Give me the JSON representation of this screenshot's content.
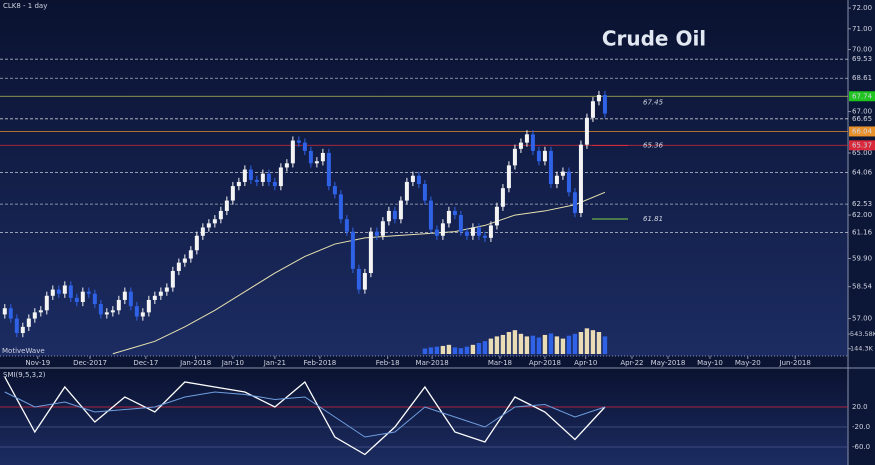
{
  "chart_data": {
    "type": "candlestick",
    "title": "Crude Oil",
    "symbol_label": "CLK8 - 1 day",
    "watermark": "MotiveWave",
    "up_color": "#f4f4f4",
    "down_color": "#2f62e6",
    "categories": [
      null,
      null,
      null,
      null,
      null,
      null,
      null,
      null,
      null,
      null,
      null,
      null,
      null,
      null,
      null,
      null,
      null,
      null,
      null,
      null,
      null,
      null,
      null,
      null,
      null,
      null,
      null,
      null,
      null,
      null,
      null,
      null,
      null,
      null,
      null,
      null,
      null,
      null,
      null,
      null,
      null,
      null,
      null,
      null,
      null,
      null,
      null,
      null,
      null,
      null,
      null,
      null,
      null,
      null,
      null,
      null,
      null,
      null,
      null,
      null,
      null,
      null,
      null,
      null,
      null,
      null,
      null,
      null,
      null,
      null,
      null,
      null,
      null,
      null,
      null,
      null,
      null,
      null,
      null,
      null,
      null,
      null,
      null,
      null,
      null,
      null,
      null,
      null,
      null,
      null,
      null,
      null,
      null,
      null,
      null,
      null,
      null,
      null,
      null,
      null,
      null
    ],
    "open": [
      57.2,
      57.5,
      57.0,
      56.3,
      56.6,
      57.0,
      57.3,
      57.4,
      58.1,
      58.4,
      58.2,
      58.6,
      58.0,
      57.8,
      58.3,
      58.2,
      57.7,
      57.2,
      57.3,
      57.4,
      57.9,
      58.3,
      57.6,
      57.1,
      57.3,
      57.9,
      58.1,
      58.3,
      58.5,
      59.3,
      59.7,
      59.9,
      60.3,
      61.0,
      61.4,
      61.6,
      61.8,
      62.2,
      62.7,
      63.4,
      63.6,
      64.2,
      63.7,
      63.6,
      64.0,
      63.6,
      63.4,
      64.3,
      64.5,
      65.6,
      65.5,
      65.1,
      64.5,
      64.6,
      65.0,
      63.4,
      63.0,
      61.8,
      61.2,
      59.4,
      58.4,
      59.2,
      61.2,
      61.0,
      61.7,
      62.2,
      61.8,
      62.7,
      63.6,
      63.9,
      63.5,
      62.7,
      61.3,
      61.0,
      61.6,
      62.2,
      62.0,
      61.2,
      61.0,
      61.4,
      61.0,
      60.9,
      61.5,
      62.4,
      63.3,
      64.4,
      65.2,
      65.5,
      65.9,
      65.1,
      64.6,
      65.1,
      63.5,
      63.9,
      64.1,
      63.1,
      62.1,
      65.4,
      66.7,
      67.5,
      67.8
    ],
    "high": [
      57.7,
      57.7,
      57.2,
      56.8,
      57.2,
      57.5,
      57.6,
      58.3,
      58.6,
      58.6,
      58.8,
      58.8,
      58.2,
      58.5,
      58.5,
      58.4,
      57.9,
      57.5,
      57.6,
      58.1,
      58.5,
      58.5,
      57.8,
      57.5,
      58.1,
      58.3,
      58.5,
      58.7,
      59.5,
      59.9,
      60.1,
      60.5,
      61.2,
      61.6,
      61.8,
      62.0,
      62.4,
      62.9,
      63.6,
      63.8,
      64.4,
      64.4,
      63.9,
      64.2,
      64.2,
      63.8,
      64.5,
      64.7,
      65.8,
      65.8,
      65.7,
      65.3,
      64.8,
      65.2,
      65.2,
      63.6,
      63.2,
      62.0,
      61.4,
      59.6,
      59.4,
      61.4,
      61.4,
      61.9,
      62.4,
      62.4,
      62.9,
      63.8,
      64.1,
      64.1,
      63.7,
      62.9,
      61.5,
      61.8,
      62.4,
      62.4,
      62.2,
      61.4,
      61.6,
      61.6,
      61.2,
      61.7,
      62.6,
      63.5,
      64.6,
      65.4,
      65.7,
      66.1,
      66.1,
      65.3,
      65.3,
      65.3,
      64.1,
      64.3,
      64.3,
      63.3,
      65.6,
      66.9,
      67.7,
      68.0,
      68.0
    ],
    "low": [
      57.0,
      56.8,
      56.1,
      56.1,
      56.4,
      56.8,
      57.1,
      57.2,
      57.9,
      58.0,
      58.0,
      57.8,
      57.6,
      57.6,
      58.0,
      57.5,
      57.0,
      57.0,
      57.1,
      57.2,
      57.7,
      57.4,
      56.9,
      56.9,
      57.1,
      57.7,
      57.9,
      58.1,
      58.3,
      59.1,
      59.5,
      59.7,
      60.1,
      60.8,
      61.2,
      61.4,
      61.6,
      62.0,
      62.5,
      63.2,
      63.4,
      63.5,
      63.4,
      63.4,
      63.4,
      63.2,
      63.2,
      64.1,
      64.3,
      65.3,
      64.9,
      64.3,
      64.3,
      64.4,
      63.2,
      62.8,
      61.6,
      61.0,
      59.2,
      58.2,
      58.2,
      59.0,
      60.8,
      60.8,
      61.5,
      61.6,
      61.6,
      62.5,
      63.4,
      63.3,
      62.5,
      61.1,
      60.8,
      60.8,
      61.4,
      61.8,
      61.0,
      60.8,
      60.8,
      60.8,
      60.7,
      60.7,
      61.3,
      62.2,
      63.1,
      64.2,
      65.0,
      65.3,
      64.9,
      64.4,
      64.4,
      63.3,
      63.3,
      63.7,
      62.9,
      61.9,
      61.9,
      65.2,
      66.5,
      67.3,
      66.7
    ],
    "close": [
      57.5,
      57.0,
      56.3,
      56.6,
      57.0,
      57.3,
      57.4,
      58.1,
      58.4,
      58.2,
      58.6,
      58.0,
      57.8,
      58.3,
      58.2,
      57.7,
      57.2,
      57.3,
      57.4,
      57.9,
      58.3,
      57.6,
      57.1,
      57.3,
      57.9,
      58.1,
      58.3,
      58.5,
      59.3,
      59.7,
      59.9,
      60.3,
      61.0,
      61.4,
      61.6,
      61.8,
      62.2,
      62.7,
      63.4,
      63.6,
      64.2,
      63.7,
      63.6,
      64.0,
      63.6,
      63.4,
      64.3,
      64.5,
      65.6,
      65.5,
      65.1,
      64.5,
      64.6,
      65.0,
      63.4,
      63.0,
      61.8,
      61.2,
      59.4,
      58.4,
      59.2,
      61.2,
      61.0,
      61.7,
      62.2,
      61.8,
      62.7,
      63.6,
      63.9,
      63.5,
      62.7,
      61.3,
      61.0,
      61.6,
      62.2,
      62.0,
      61.2,
      61.0,
      61.4,
      61.0,
      60.9,
      61.5,
      62.4,
      63.3,
      64.4,
      65.2,
      65.5,
      65.9,
      65.1,
      64.6,
      65.1,
      63.5,
      63.9,
      64.1,
      63.1,
      62.1,
      65.4,
      66.7,
      67.5,
      67.8,
      66.9
    ],
    "xlim": [
      -0.8,
      140.5
    ],
    "xticks": [
      {
        "value": 5.5,
        "label": "Nov-19"
      },
      {
        "value": 14.2,
        "label": "Dec-2017"
      },
      {
        "value": 23.5,
        "label": "Dec-17"
      },
      {
        "value": 31.8,
        "label": "Jan-2018"
      },
      {
        "value": 38,
        "label": "Jan-10"
      },
      {
        "value": 45,
        "label": "Jan-21"
      },
      {
        "value": 52.5,
        "label": "Feb-2018"
      },
      {
        "value": 63.8,
        "label": "Feb-18"
      },
      {
        "value": 71.2,
        "label": "Mar-2018"
      },
      {
        "value": 82.5,
        "label": "Mar-18"
      },
      {
        "value": 90,
        "label": "Apr-2018"
      },
      {
        "value": 96.8,
        "label": "Apr-10"
      },
      {
        "value": 104.5,
        "label": "Apr-22"
      },
      {
        "value": 110.5,
        "label": "May-2018"
      },
      {
        "value": 117.5,
        "label": "May-10"
      },
      {
        "value": 123.8,
        "label": "May-20"
      },
      {
        "value": 131.7,
        "label": "Jun-2018"
      }
    ],
    "ylim": [
      55.24,
      72.39
    ],
    "yticks": [
      {
        "value": 72,
        "label": "72.00"
      },
      {
        "value": 71,
        "label": "71.00"
      },
      {
        "value": 70,
        "label": "70.00"
      },
      {
        "value": 67,
        "label": "67.00"
      },
      {
        "value": 65,
        "label": "65.00"
      },
      {
        "value": 62,
        "label": "62.00"
      },
      {
        "value": 59.9,
        "label": "59.90"
      },
      {
        "value": 58.54,
        "label": "58.54"
      },
      {
        "value": 57,
        "label": "57.00"
      }
    ],
    "levels": [
      {
        "value": 69.53,
        "label": "69.53",
        "color": "#c8ccd8"
      },
      {
        "value": 68.61,
        "label": "68.61",
        "color": "#c8ccd8"
      },
      {
        "value": 67.74,
        "label": "67.74",
        "color": "#d9d65a",
        "box": "#1fc41f"
      },
      {
        "value": 66.65,
        "label": "66.65",
        "color": "#e8e8e8"
      },
      {
        "value": 66.04,
        "label": "66.04",
        "color": "#e8902a",
        "box": "#e8902a"
      },
      {
        "value": 65.37,
        "label": "65.37",
        "color": "#d8283a",
        "box": "#d8283a"
      },
      {
        "value": 64.06,
        "label": "64.06",
        "color": "#c8ccd8"
      },
      {
        "value": 62.53,
        "label": "62.53",
        "color": "#c8ccd8"
      },
      {
        "value": 61.16,
        "label": "61.16",
        "color": "#c8ccd8"
      }
    ],
    "annotations": [
      {
        "value": 67.45,
        "color": "#d9d65a"
      },
      {
        "value": 65.36,
        "color": "#d8283a"
      },
      {
        "value": 61.81,
        "color": "#7fd04a"
      }
    ],
    "sma": {
      "color": "#e8e2b0",
      "x": [
        18,
        25,
        30,
        35,
        40,
        45,
        50,
        55,
        60,
        65,
        70,
        75,
        80,
        85,
        90,
        95,
        100
      ],
      "values": [
        55.3,
        55.9,
        56.6,
        57.4,
        58.3,
        59.2,
        60.0,
        60.6,
        60.9,
        61.0,
        61.1,
        61.2,
        61.5,
        62.0,
        62.2,
        62.5,
        63.1
      ]
    },
    "volume": {
      "up_color": "#eadcb4",
      "down_color": "#2f62e6",
      "x": [
        70,
        71,
        72,
        73,
        74,
        75,
        76,
        77,
        78,
        79,
        80,
        81,
        82,
        83,
        84,
        85,
        86,
        87,
        88,
        89,
        90,
        91,
        92,
        93,
        94,
        95,
        96,
        97,
        98,
        99,
        100
      ],
      "values": [
        150,
        180,
        200,
        220,
        250,
        180,
        160,
        200,
        250,
        300,
        350,
        420,
        480,
        520,
        600,
        650,
        550,
        480,
        500,
        450,
        520,
        560,
        480,
        420,
        500,
        550,
        600,
        700,
        650,
        600,
        480
      ],
      "ylim": [
        0,
        900
      ],
      "yticks": [
        {
          "value": 543.58,
          "label": "543.58K"
        },
        {
          "value": 144.3,
          "label": "144.3K"
        }
      ]
    },
    "indicator": {
      "title": "SMI(9,5,3,2)",
      "ylim": [
        -90,
        98
      ],
      "yticks": [
        {
          "value": 20,
          "label": "20.0"
        },
        {
          "value": -20,
          "label": "-20.0"
        },
        {
          "value": -60,
          "label": "-60.0"
        }
      ],
      "series": [
        {
          "color": "#ffffff",
          "x": [
            0,
            5,
            10,
            15,
            20,
            25,
            30,
            35,
            40,
            45,
            50,
            55,
            60,
            65,
            70,
            75,
            80,
            85,
            90,
            95,
            100
          ],
          "values": [
            80,
            -30,
            60,
            -10,
            40,
            10,
            70,
            60,
            50,
            20,
            70,
            -40,
            -75,
            -20,
            60,
            -30,
            -50,
            40,
            10,
            -45,
            20
          ]
        },
        {
          "color": "#6f9fe0",
          "x": [
            0,
            5,
            10,
            15,
            20,
            25,
            30,
            35,
            40,
            45,
            50,
            55,
            60,
            65,
            70,
            75,
            80,
            85,
            90,
            95,
            100
          ],
          "values": [
            50,
            20,
            30,
            10,
            15,
            20,
            40,
            50,
            45,
            35,
            40,
            0,
            -40,
            -30,
            20,
            0,
            -20,
            20,
            25,
            0,
            20
          ]
        }
      ]
    }
  }
}
